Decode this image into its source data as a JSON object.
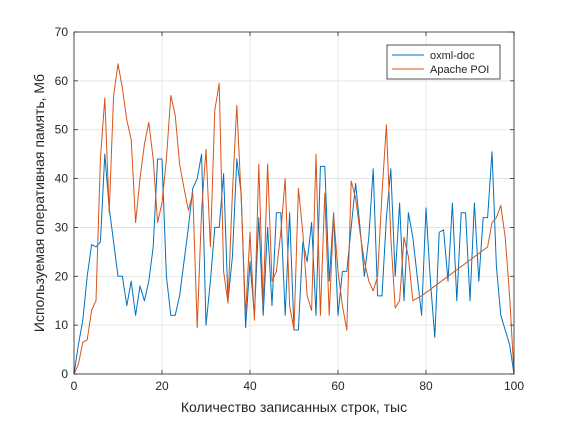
{
  "chart_data": {
    "type": "line",
    "xlabel": "Количество записанных строк, тыс",
    "ylabel": "Используемая оперативная память, Мб",
    "xlim": [
      0,
      100
    ],
    "ylim": [
      0,
      70
    ],
    "xticks": [
      0,
      20,
      40,
      60,
      80,
      100
    ],
    "yticks": [
      0,
      10,
      20,
      30,
      40,
      50,
      60,
      70
    ],
    "grid": true,
    "legend_position": "top-right",
    "series": [
      {
        "name": "oxml-doc",
        "color": "#0072BD",
        "points": [
          [
            0,
            0
          ],
          [
            1,
            6
          ],
          [
            2,
            11
          ],
          [
            3,
            20
          ],
          [
            4,
            26.5
          ],
          [
            5,
            26
          ],
          [
            6,
            27
          ],
          [
            7,
            45
          ],
          [
            8,
            34
          ],
          [
            9,
            27
          ],
          [
            10,
            20
          ],
          [
            11,
            20
          ],
          [
            12,
            14
          ],
          [
            13,
            19
          ],
          [
            14,
            12
          ],
          [
            15,
            18
          ],
          [
            16,
            15
          ],
          [
            17,
            19
          ],
          [
            18,
            26
          ],
          [
            19,
            44
          ],
          [
            20,
            44
          ],
          [
            21,
            20
          ],
          [
            22,
            12
          ],
          [
            23,
            12
          ],
          [
            24,
            16
          ],
          [
            25,
            23
          ],
          [
            26,
            30
          ],
          [
            27,
            38
          ],
          [
            28,
            40
          ],
          [
            29,
            45
          ],
          [
            30,
            10
          ],
          [
            31,
            19
          ],
          [
            32,
            30
          ],
          [
            33,
            30
          ],
          [
            34,
            41
          ],
          [
            35,
            15
          ],
          [
            36,
            24
          ],
          [
            37,
            44
          ],
          [
            38,
            37
          ],
          [
            39,
            9.5
          ],
          [
            40,
            23
          ],
          [
            41,
            12
          ],
          [
            42,
            32
          ],
          [
            43,
            12
          ],
          [
            44,
            30
          ],
          [
            45,
            14
          ],
          [
            46,
            33
          ],
          [
            47,
            33
          ],
          [
            48,
            12
          ],
          [
            49,
            33
          ],
          [
            50,
            9
          ],
          [
            51,
            9
          ],
          [
            52,
            27
          ],
          [
            53,
            23
          ],
          [
            54,
            31
          ],
          [
            55,
            12
          ],
          [
            56,
            42.5
          ],
          [
            57,
            42.5
          ],
          [
            58,
            19
          ],
          [
            59,
            33
          ],
          [
            60,
            12
          ],
          [
            61,
            21
          ],
          [
            62,
            21
          ],
          [
            63,
            30
          ],
          [
            64,
            39
          ],
          [
            65,
            30
          ],
          [
            66,
            20
          ],
          [
            67,
            28
          ],
          [
            68,
            42
          ],
          [
            69,
            16
          ],
          [
            70,
            16
          ],
          [
            71,
            32
          ],
          [
            72,
            42
          ],
          [
            73,
            20
          ],
          [
            74,
            35
          ],
          [
            75,
            15
          ],
          [
            76,
            33
          ],
          [
            77,
            28
          ],
          [
            78,
            20
          ],
          [
            79,
            12
          ],
          [
            80,
            34
          ],
          [
            81,
            19
          ],
          [
            82,
            7.5
          ],
          [
            83,
            29
          ],
          [
            84,
            29.5
          ],
          [
            85,
            19
          ],
          [
            86,
            35
          ],
          [
            87,
            15
          ],
          [
            88,
            33
          ],
          [
            89,
            33
          ],
          [
            90,
            15
          ],
          [
            91,
            35
          ],
          [
            92,
            19
          ],
          [
            93,
            32
          ],
          [
            94,
            32
          ],
          [
            95,
            45.5
          ],
          [
            96,
            22
          ],
          [
            97,
            12
          ],
          [
            98,
            9
          ],
          [
            99,
            6
          ],
          [
            100,
            0
          ]
        ]
      },
      {
        "name": "Apache POI",
        "color": "#D95319",
        "points": [
          [
            0,
            0
          ],
          [
            1,
            2
          ],
          [
            2,
            6.5
          ],
          [
            3,
            7
          ],
          [
            4,
            13
          ],
          [
            5,
            15
          ],
          [
            6,
            44
          ],
          [
            7,
            56.5
          ],
          [
            8,
            33
          ],
          [
            9,
            57
          ],
          [
            10,
            63.5
          ],
          [
            11,
            58.5
          ],
          [
            12,
            52
          ],
          [
            13,
            48
          ],
          [
            14,
            31
          ],
          [
            15,
            40
          ],
          [
            16,
            47
          ],
          [
            17,
            51.5
          ],
          [
            18,
            44
          ],
          [
            19,
            31
          ],
          [
            20,
            35
          ],
          [
            21,
            44
          ],
          [
            22,
            57
          ],
          [
            23,
            53
          ],
          [
            24,
            43
          ],
          [
            25,
            38
          ],
          [
            26,
            33.5
          ],
          [
            27,
            37
          ],
          [
            28,
            9.5
          ],
          [
            29,
            33.5
          ],
          [
            30,
            46
          ],
          [
            31,
            26
          ],
          [
            32,
            54
          ],
          [
            33,
            59.5
          ],
          [
            34,
            21
          ],
          [
            35,
            14.5
          ],
          [
            36,
            37
          ],
          [
            37,
            55
          ],
          [
            38,
            36
          ],
          [
            39,
            12
          ],
          [
            40,
            29
          ],
          [
            41,
            11
          ],
          [
            42,
            43
          ],
          [
            43,
            14
          ],
          [
            44,
            43
          ],
          [
            45,
            19
          ],
          [
            46,
            21
          ],
          [
            47,
            29
          ],
          [
            48,
            40
          ],
          [
            49,
            14
          ],
          [
            50,
            9
          ],
          [
            51,
            38
          ],
          [
            52,
            29
          ],
          [
            53,
            16
          ],
          [
            54,
            13
          ],
          [
            55,
            45
          ],
          [
            56,
            12
          ],
          [
            57,
            37
          ],
          [
            58,
            12
          ],
          [
            59,
            32.5
          ],
          [
            60,
            21
          ],
          [
            61,
            14
          ],
          [
            62,
            9
          ],
          [
            63,
            39.5
          ],
          [
            64,
            36
          ],
          [
            65,
            29
          ],
          [
            66,
            23
          ],
          [
            67,
            19
          ],
          [
            68,
            17
          ],
          [
            69,
            20
          ],
          [
            70,
            37
          ],
          [
            71,
            51
          ],
          [
            72,
            28
          ],
          [
            73,
            13.5
          ],
          [
            74,
            15
          ],
          [
            75,
            28
          ],
          [
            76,
            24
          ],
          [
            77,
            15
          ],
          [
            78,
            15.5
          ],
          [
            79,
            16
          ],
          [
            94,
            26
          ],
          [
            95,
            31
          ],
          [
            96,
            32
          ],
          [
            97,
            34.5
          ],
          [
            98,
            28
          ],
          [
            99,
            16
          ],
          [
            100,
            0
          ]
        ]
      }
    ]
  }
}
